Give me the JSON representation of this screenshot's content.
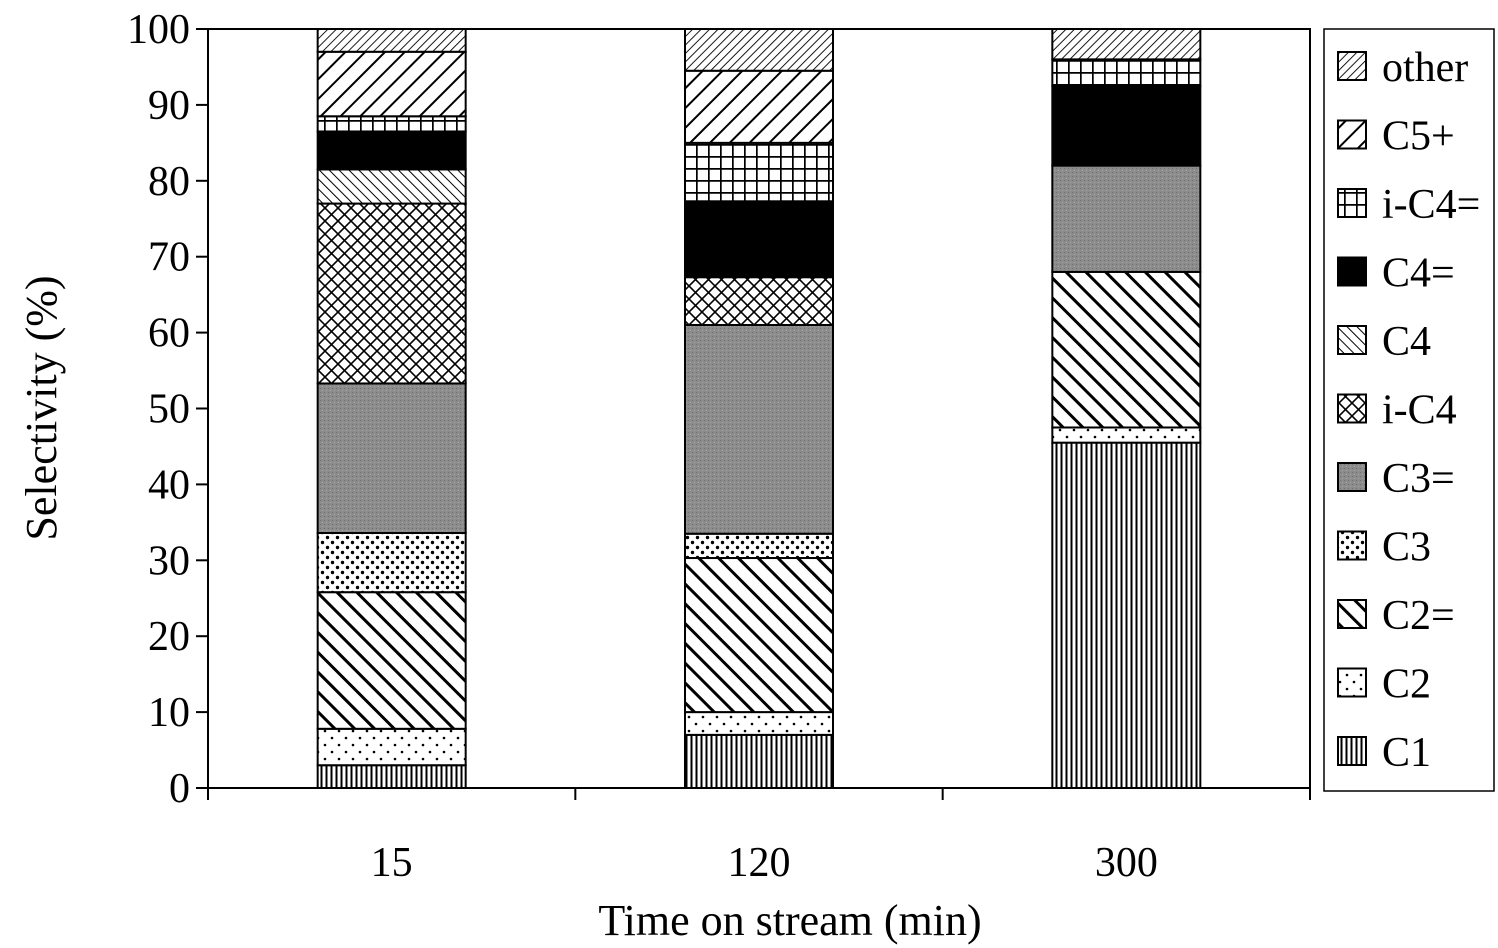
{
  "chart_data": {
    "type": "bar",
    "stacked": true,
    "xlabel": "Time on stream (min)",
    "ylabel": "Selectivity (%)",
    "ylim": [
      0,
      100
    ],
    "yticks": [
      0,
      10,
      20,
      30,
      40,
      50,
      60,
      70,
      80,
      90,
      100
    ],
    "categories": [
      "15",
      "120",
      "300"
    ],
    "grid": false,
    "legend_position": "right",
    "series": [
      {
        "name": "C1",
        "pattern": "vertical",
        "values": [
          3.0,
          7.0,
          45.5
        ]
      },
      {
        "name": "C2",
        "pattern": "dots-sparse",
        "values": [
          4.8,
          3.0,
          2.0
        ]
      },
      {
        "name": "C2=",
        "pattern": "diagonal-wide",
        "values": [
          18.0,
          20.3,
          20.5
        ]
      },
      {
        "name": "C3",
        "pattern": "dots-dense",
        "values": [
          7.8,
          3.2,
          0.0
        ]
      },
      {
        "name": "C3=",
        "pattern": "gray-fill",
        "values": [
          19.7,
          27.5,
          14.0
        ]
      },
      {
        "name": "i-C4",
        "pattern": "crosshatch-diagonal",
        "values": [
          23.7,
          6.3,
          0.0
        ]
      },
      {
        "name": "C4",
        "pattern": "diagonal-fine",
        "values": [
          4.5,
          0.0,
          0.0
        ]
      },
      {
        "name": "C4=",
        "pattern": "solid-black",
        "values": [
          5.0,
          10.0,
          10.5
        ]
      },
      {
        "name": "i-C4=",
        "pattern": "grid",
        "values": [
          2.0,
          7.7,
          3.5
        ]
      },
      {
        "name": "C5+",
        "pattern": "backslash-wide",
        "values": [
          8.5,
          9.5,
          0.0
        ]
      },
      {
        "name": "other",
        "pattern": "backslash-fine",
        "values": [
          3.0,
          5.5,
          4.0
        ]
      }
    ],
    "colors": {
      "fill": "#ffffff",
      "ink": "#000000",
      "gray": "#8c8c8c"
    }
  }
}
